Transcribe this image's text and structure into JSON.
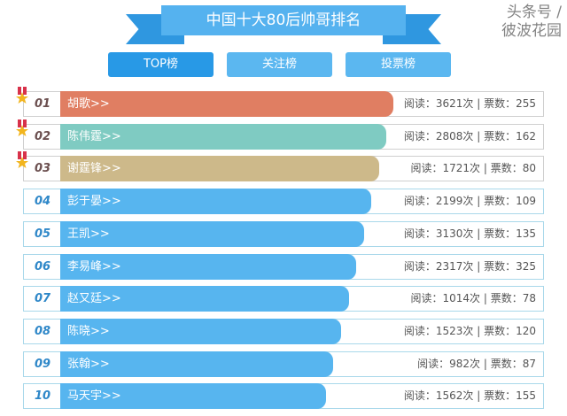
{
  "title": "中国十大80后帅哥排名",
  "tabs": [
    {
      "label": "TOP榜"
    },
    {
      "label": "关注榜"
    },
    {
      "label": "投票榜"
    }
  ],
  "rows": [
    {
      "rank": "01",
      "name": "胡歌>>",
      "stats": "阅读：3621次 | 票数：255",
      "color": "#e07e62"
    },
    {
      "rank": "02",
      "name": "陈伟霆>>",
      "stats": "阅读：2808次 | 票数：162",
      "color": "#7fcbc2"
    },
    {
      "rank": "03",
      "name": "谢霆锋>>",
      "stats": "阅读：1721次 | 票数：80",
      "color": "#cdb98a"
    },
    {
      "rank": "04",
      "name": "彭于晏>>",
      "stats": "阅读：2199次 | 票数：109",
      "color": "#57b5ef"
    },
    {
      "rank": "05",
      "name": "王凯>>",
      "stats": "阅读：3130次 | 票数：135",
      "color": "#57b5ef"
    },
    {
      "rank": "06",
      "name": "李易峰>>",
      "stats": "阅读：2317次 | 票数：325",
      "color": "#57b5ef"
    },
    {
      "rank": "07",
      "name": "赵又廷>>",
      "stats": "阅读：1014次 | 票数：78",
      "color": "#57b5ef"
    },
    {
      "rank": "08",
      "name": "陈晓>>",
      "stats": "阅读：1523次 | 票数：120",
      "color": "#57b5ef"
    },
    {
      "rank": "09",
      "name": "张翰>>",
      "stats": "阅读：982次 | 票数：87",
      "color": "#57b5ef"
    },
    {
      "rank": "10",
      "name": "马天宇>>",
      "stats": "阅读：1562次 | 票数：155",
      "color": "#57b5ef"
    }
  ],
  "watermark": "头条号 / 彼波花园"
}
